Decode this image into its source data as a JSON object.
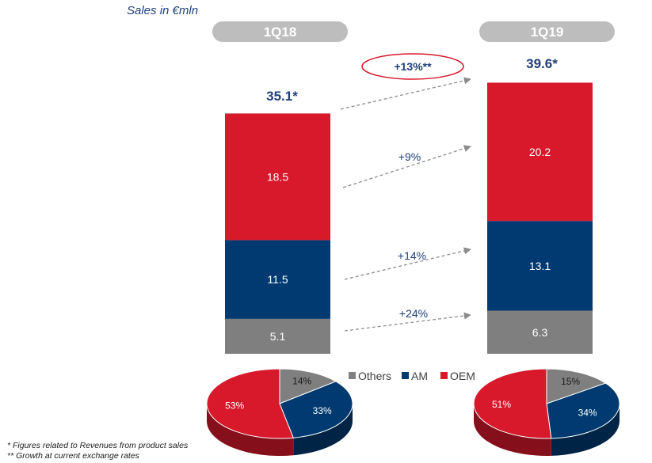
{
  "header": {
    "title": "Sales in €mln"
  },
  "colors": {
    "others": "#7f7f7f",
    "am": "#003a70",
    "oem": "#d7192b",
    "pill": "#bdbdbd",
    "text_blue": "#1f3f7a",
    "circle": "#d7192b"
  },
  "chart_data": [
    {
      "type": "bar",
      "stacked": true,
      "categories": [
        "1Q18",
        "1Q19"
      ],
      "series": [
        {
          "name": "Others",
          "values": [
            5.1,
            6.3
          ]
        },
        {
          "name": "AM",
          "values": [
            11.5,
            13.1
          ]
        },
        {
          "name": "OEM",
          "values": [
            18.5,
            20.2
          ]
        }
      ],
      "totals": [
        "35.1*",
        "39.6*"
      ],
      "growth": {
        "total": "+13%**",
        "oem": "+9%",
        "am": "+14%",
        "others": "+24%"
      }
    },
    {
      "type": "pie",
      "category": "1Q18",
      "slices": [
        {
          "name": "Others",
          "value": 14,
          "label": "14%"
        },
        {
          "name": "AM",
          "value": 33,
          "label": "33%"
        },
        {
          "name": "OEM",
          "value": 53,
          "label": "53%"
        }
      ]
    },
    {
      "type": "pie",
      "category": "1Q19",
      "slices": [
        {
          "name": "Others",
          "value": 15,
          "label": "15%"
        },
        {
          "name": "AM",
          "value": 34,
          "label": "34%"
        },
        {
          "name": "OEM",
          "value": 51,
          "label": "51%"
        }
      ]
    }
  ],
  "legend": [
    "Others",
    "AM",
    "OEM"
  ],
  "footnotes": [
    "* Figures related to Revenues from product sales",
    "** Growth at current exchange rates"
  ]
}
